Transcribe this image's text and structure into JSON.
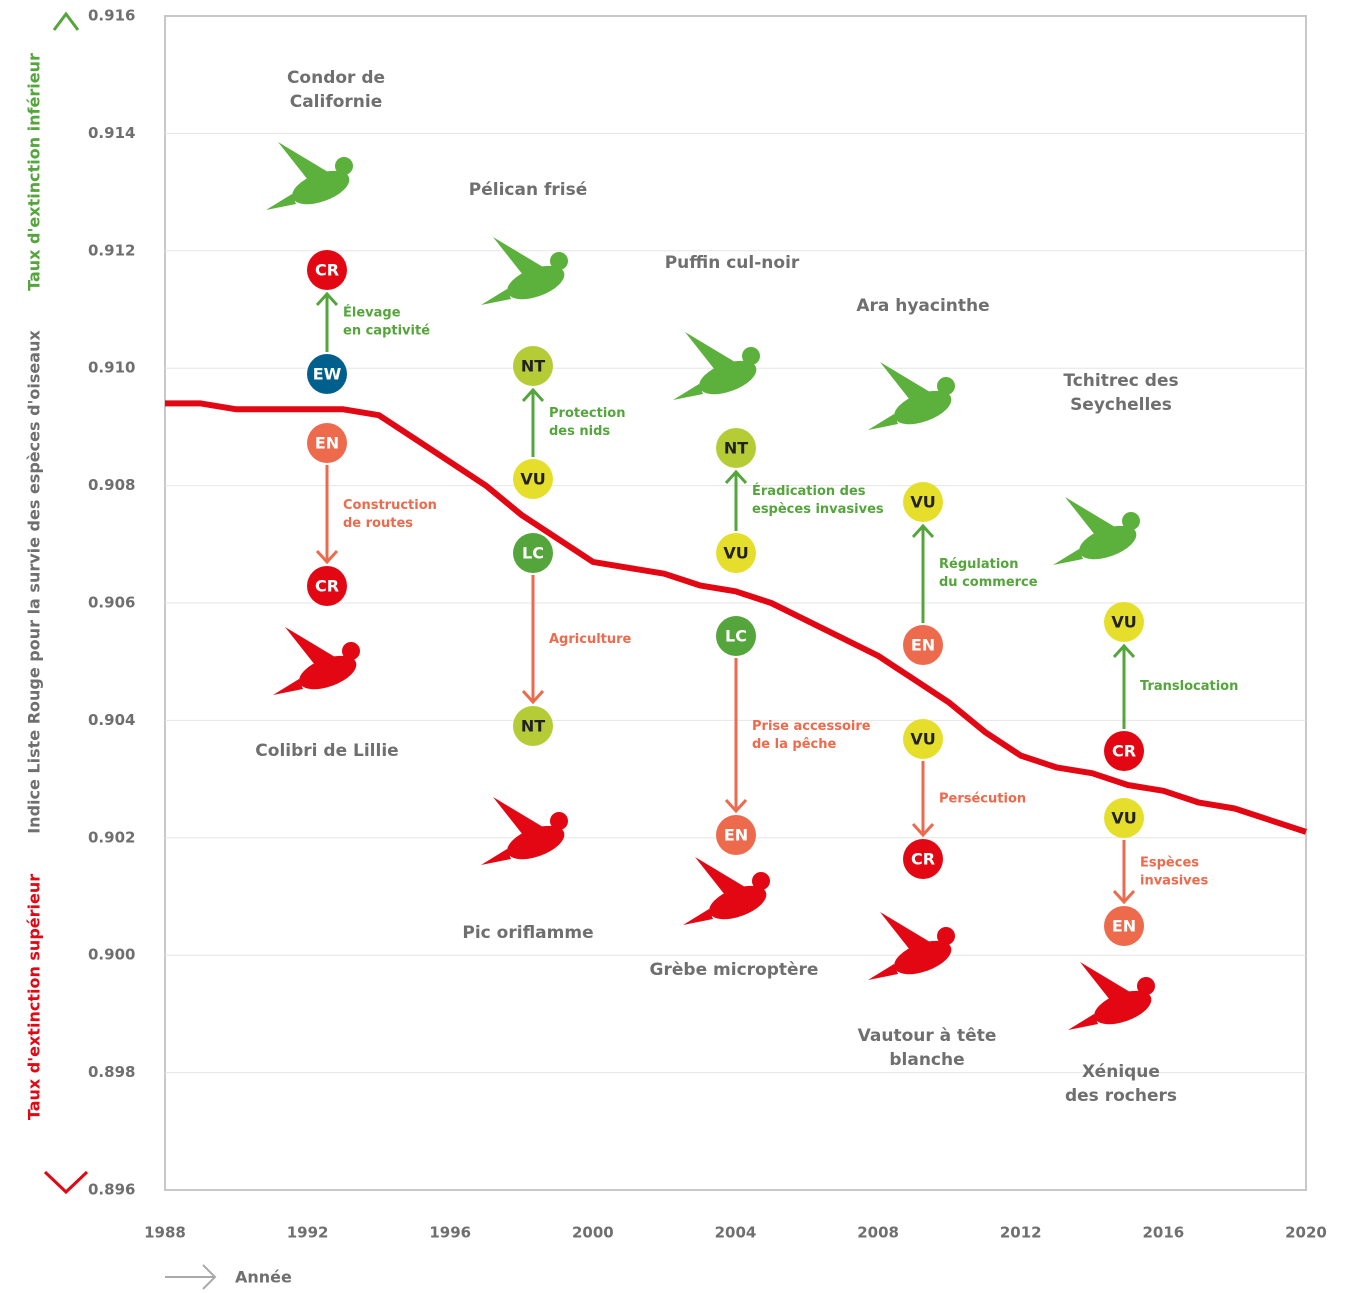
{
  "chart_data": {
    "type": "line",
    "y_label": "Indice Liste Rouge pour la survie des espèces d'oiseaux",
    "y_label_top": "Taux d'extinction inférieur",
    "y_label_bottom": "Taux d'extinction supérieur",
    "x_label": "Année",
    "xlim": [
      1988,
      2020
    ],
    "xticks": [
      1988,
      1992,
      1996,
      2000,
      2004,
      2008,
      2012,
      2016,
      2020
    ],
    "ylim": [
      0.896,
      0.916
    ],
    "yticks": [
      0.896,
      0.898,
      {
        "value": 0.9,
        "label": "0.900"
      },
      0.902,
      0.904,
      0.906,
      0.908,
      {
        "value": 0.91,
        "label": "0.910"
      },
      0.912,
      0.914,
      0.916
    ],
    "grid": true,
    "color": "#e30613",
    "x": [
      1988,
      1989,
      1990,
      1991,
      1992,
      1993,
      1994,
      1995,
      1996,
      1997,
      1998,
      1999,
      2000,
      2001,
      2002,
      2003,
      2004,
      2005,
      2006,
      2007,
      2008,
      2009,
      2010,
      2011,
      2012,
      2013,
      2014,
      2015,
      2016,
      2017,
      2018,
      2019,
      2020
    ],
    "values": [
      0.9094,
      0.9094,
      0.9093,
      0.9093,
      0.9093,
      0.9093,
      0.9092,
      0.9088,
      0.9084,
      0.908,
      0.9075,
      0.9071,
      0.9067,
      0.9066,
      0.9065,
      0.9063,
      0.9062,
      0.906,
      0.9057,
      0.9054,
      0.9051,
      0.9047,
      0.9043,
      0.9038,
      0.9034,
      0.9032,
      0.9031,
      0.9029,
      0.9028,
      0.9026,
      0.9025,
      0.9023,
      0.9021
    ],
    "status_colors": {
      "CR": "#e30613",
      "EN": "#ee6a4c",
      "VU": "#e5df2b",
      "NT": "#b6cc36",
      "LC": "#54a53b",
      "EW": "#005f8d"
    },
    "species": [
      {
        "name": [
          "Condor de",
          "Californie"
        ],
        "from": "EW",
        "to": "CR",
        "cause": [
          "Élevage",
          "en captivité"
        ],
        "color": "#54a53b"
      },
      {
        "name": [
          "Colibri de Lillie"
        ],
        "from": "EN",
        "to": "CR",
        "cause": [
          "Construction",
          "de routes"
        ],
        "color": "#ee6a4c"
      },
      {
        "name": [
          "Pélican frisé"
        ],
        "from": "VU",
        "to": "NT",
        "cause": [
          "Protection",
          "des nids"
        ],
        "color": "#54a53b"
      },
      {
        "name": [
          "Pic oriflamme"
        ],
        "from": "LC",
        "to": "NT",
        "cause": [
          "Agriculture"
        ],
        "color": "#ee6a4c"
      },
      {
        "name": [
          "Puffin cul-noir"
        ],
        "from": "VU",
        "to": "NT",
        "cause": [
          "Éradication des",
          "espèces invasives"
        ],
        "color": "#54a53b"
      },
      {
        "name": [
          "Grèbe microptère"
        ],
        "from": "LC",
        "to": "EN",
        "cause": [
          "Prise accessoire",
          "de la pêche"
        ],
        "color": "#ee6a4c"
      },
      {
        "name": [
          "Ara hyacinthe"
        ],
        "from": "EN",
        "to": "VU",
        "cause": [
          "Régulation",
          "du commerce"
        ],
        "color": "#54a53b"
      },
      {
        "name": [
          "Vautour à tête",
          "blanche"
        ],
        "from": "VU",
        "to": "CR",
        "cause": [
          "Persécution"
        ],
        "color": "#ee6a4c"
      },
      {
        "name": [
          "Tchitrec des",
          "Seychelles"
        ],
        "from": "CR",
        "to": "VU",
        "cause": [
          "Translocation"
        ],
        "color": "#54a53b"
      },
      {
        "name": [
          "Xénique",
          "des rochers"
        ],
        "from": "VU",
        "to": "EN",
        "cause": [
          "Espèces",
          "invasives"
        ],
        "color": "#ee6a4c"
      }
    ]
  }
}
